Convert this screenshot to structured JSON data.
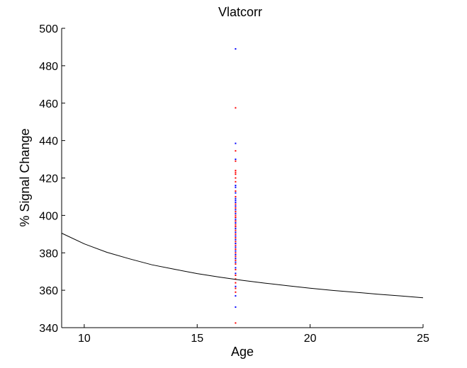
{
  "chart_data": {
    "type": "scatter",
    "title": "Vlatcorr",
    "xlabel": "Age",
    "ylabel": "% Signal Change",
    "xlim": [
      9,
      25
    ],
    "ylim": [
      340,
      500
    ],
    "xticks": [
      10,
      15,
      20,
      25
    ],
    "yticks": [
      340,
      360,
      380,
      400,
      420,
      440,
      460,
      480,
      500
    ],
    "grid": false,
    "series": [
      {
        "color": "#0000ff",
        "marker": "dot",
        "x": [
          16.7,
          16.7,
          16.7,
          16.7,
          16.7,
          16.7,
          16.7,
          16.7,
          16.7,
          16.7,
          16.7,
          16.7,
          16.7,
          16.7,
          16.7,
          16.7,
          16.7,
          16.7,
          16.7,
          16.7,
          16.7,
          16.7,
          16.7,
          16.7,
          16.7,
          16.7,
          16.7,
          16.7,
          16.7,
          16.7,
          16.7,
          16.7
        ],
        "y": [
          489,
          438.5,
          430,
          416,
          415,
          412,
          409,
          408,
          407,
          405,
          403,
          401,
          399,
          398,
          397,
          396,
          394,
          393,
          391,
          389,
          387,
          385,
          383,
          381,
          379,
          377,
          375,
          372,
          369,
          362,
          357,
          351
        ]
      },
      {
        "color": "#ff0000",
        "marker": "dot",
        "x": [
          16.7,
          16.7,
          16.7,
          16.7,
          16.7,
          16.7,
          16.7,
          16.7,
          16.7,
          16.7,
          16.7,
          16.7,
          16.7,
          16.7,
          16.7,
          16.7,
          16.7,
          16.7,
          16.7,
          16.7,
          16.7,
          16.7,
          16.7,
          16.7,
          16.7,
          16.7,
          16.7,
          16.7,
          16.7,
          16.7,
          16.7,
          16.7,
          16.7,
          16.7,
          16.7
        ],
        "y": [
          457.5,
          434.5,
          429,
          424,
          423,
          422,
          420,
          418,
          413,
          410,
          406,
          404,
          402,
          400,
          399,
          397,
          395,
          394,
          392,
          390,
          388,
          386,
          384,
          382,
          380,
          378,
          376,
          374,
          371,
          368,
          366,
          364,
          361,
          359,
          342.5
        ]
      },
      {
        "color": "#000000",
        "marker": "line",
        "x": [
          9,
          10,
          11,
          12,
          13,
          14,
          15,
          16,
          17,
          18,
          19,
          20,
          21,
          22,
          23,
          24,
          25
        ],
        "y": [
          390.5,
          384.8,
          380.3,
          376.8,
          373.6,
          371.2,
          368.9,
          367.0,
          365.3,
          363.8,
          362.4,
          361.1,
          359.9,
          358.9,
          357.9,
          357.0,
          356.0
        ]
      }
    ]
  }
}
